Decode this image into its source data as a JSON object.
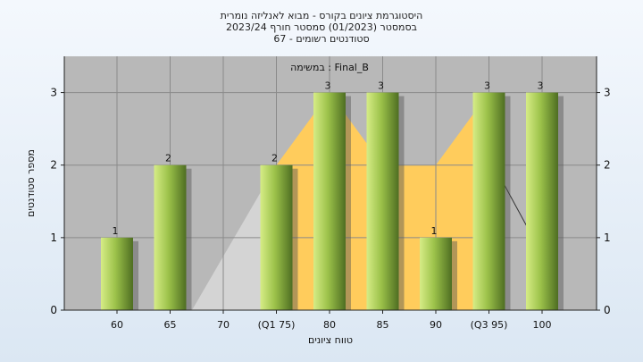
{
  "chart_data": {
    "type": "bar",
    "title_lines": [
      "היסטוגרמת ציונים בקורס - מבוא לאנליזה נומרית",
      "בסמסטר  (01/2023)  סמסטר חורף  2023/24",
      "סטודנטים רשומים - 67"
    ],
    "ylabel": "מספר סטודנטים",
    "xlabel": "טווח ציונים",
    "series_name": "Final_B : במשימה",
    "categories": [
      "60",
      "65",
      "70",
      "(Q1 75)",
      "80",
      "85",
      "90",
      "(Q3 95)",
      "100"
    ],
    "values": [
      1,
      2,
      0,
      2,
      3,
      3,
      1,
      3,
      3
    ],
    "value_labels": [
      "1",
      "2",
      "",
      "2",
      "3",
      "3",
      "1",
      "3",
      "3"
    ],
    "ylim": [
      0,
      3.5
    ],
    "yticks": [
      "0",
      "1",
      "2",
      "3"
    ],
    "grid": true,
    "colors": {
      "plot_bg": "#b8b8b8",
      "bar_light": "#cde67a",
      "bar_dark": "#5b7a2a",
      "band_fill": "#ffcc5c",
      "gray_area": "#d4d4d4"
    }
  }
}
